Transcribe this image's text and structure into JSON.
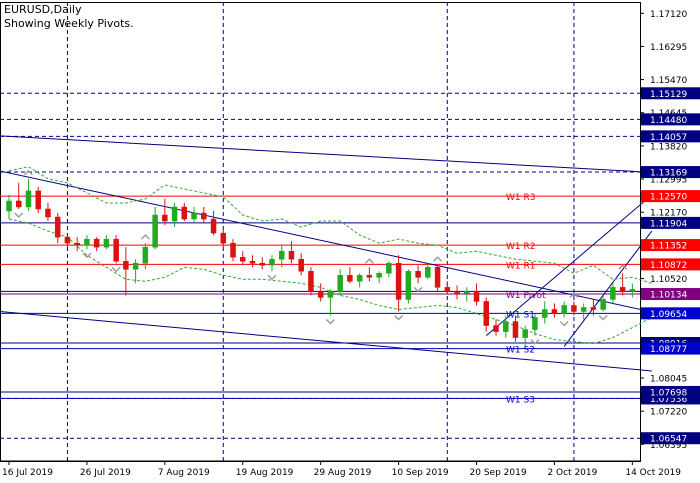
{
  "header": {
    "symbol_line": "EURUSD,Daily",
    "subtitle": "Showing Weekly Pivots."
  },
  "colors": {
    "background": "#ffffff",
    "bull": "#22aa22",
    "bear": "#dd1111",
    "resistance": "#ff0000",
    "support": "#0000cc",
    "trendline": "#000080",
    "grid_dash": "#000080",
    "envelope": "#33aa33",
    "axis_text": "#000000"
  },
  "chart_data": {
    "type": "candlestick",
    "instrument": "EURUSD",
    "timeframe": "Daily",
    "ylim": [
      1.0598,
      1.174
    ],
    "price_ticks": [
      "1.17120",
      "1.16295",
      "1.15470",
      "1.14645",
      "1.13820",
      "1.12995",
      "1.12170",
      "1.11345",
      "1.10520",
      "1.09695",
      "1.08870",
      "1.08045",
      "1.07220",
      "1.06395"
    ],
    "date_labels": [
      {
        "bar": 0,
        "text": "16 Jul 2019"
      },
      {
        "bar": 8,
        "text": "26 Jul 2019"
      },
      {
        "bar": 16,
        "text": "7 Aug 2019"
      },
      {
        "bar": 24,
        "text": "19 Aug 2019"
      },
      {
        "bar": 32,
        "text": "29 Aug 2019"
      },
      {
        "bar": 40,
        "text": "10 Sep 2019"
      },
      {
        "bar": 48,
        "text": "20 Sep 2019"
      },
      {
        "bar": 56,
        "text": "2 Oct 2019"
      },
      {
        "bar": 64,
        "text": "14 Oct 2019"
      }
    ],
    "bars_total": 66,
    "candles": [
      {
        "o": 1.122,
        "h": 1.126,
        "l": 1.12,
        "c": 1.1245
      },
      {
        "o": 1.1245,
        "h": 1.129,
        "l": 1.1225,
        "c": 1.123
      },
      {
        "o": 1.123,
        "h": 1.13,
        "l": 1.122,
        "c": 1.127
      },
      {
        "o": 1.127,
        "h": 1.128,
        "l": 1.1215,
        "c": 1.1225
      },
      {
        "o": 1.1225,
        "h": 1.124,
        "l": 1.1195,
        "c": 1.1205
      },
      {
        "o": 1.1205,
        "h": 1.1215,
        "l": 1.114,
        "c": 1.1155
      },
      {
        "o": 1.1155,
        "h": 1.116,
        "l": 1.113,
        "c": 1.114
      },
      {
        "o": 1.114,
        "h": 1.1155,
        "l": 1.112,
        "c": 1.1135
      },
      {
        "o": 1.1135,
        "h": 1.116,
        "l": 1.1125,
        "c": 1.115
      },
      {
        "o": 1.115,
        "h": 1.1155,
        "l": 1.112,
        "c": 1.113
      },
      {
        "o": 1.113,
        "h": 1.116,
        "l": 1.1125,
        "c": 1.115
      },
      {
        "o": 1.115,
        "h": 1.116,
        "l": 1.109,
        "c": 1.1095
      },
      {
        "o": 1.1095,
        "h": 1.113,
        "l": 1.101,
        "c": 1.1075
      },
      {
        "o": 1.1075,
        "h": 1.11,
        "l": 1.104,
        "c": 1.109
      },
      {
        "o": 1.109,
        "h": 1.114,
        "l": 1.1075,
        "c": 1.113
      },
      {
        "o": 1.113,
        "h": 1.123,
        "l": 1.1125,
        "c": 1.121
      },
      {
        "o": 1.121,
        "h": 1.125,
        "l": 1.1185,
        "c": 1.1195
      },
      {
        "o": 1.1195,
        "h": 1.124,
        "l": 1.118,
        "c": 1.123
      },
      {
        "o": 1.123,
        "h": 1.124,
        "l": 1.1195,
        "c": 1.12
      },
      {
        "o": 1.12,
        "h": 1.123,
        "l": 1.119,
        "c": 1.1215
      },
      {
        "o": 1.1215,
        "h": 1.123,
        "l": 1.119,
        "c": 1.12
      },
      {
        "o": 1.12,
        "h": 1.122,
        "l": 1.116,
        "c": 1.1165
      },
      {
        "o": 1.1165,
        "h": 1.1175,
        "l": 1.1125,
        "c": 1.114
      },
      {
        "o": 1.114,
        "h": 1.115,
        "l": 1.1095,
        "c": 1.1105
      },
      {
        "o": 1.1105,
        "h": 1.112,
        "l": 1.1085,
        "c": 1.1095
      },
      {
        "o": 1.1095,
        "h": 1.111,
        "l": 1.108,
        "c": 1.109
      },
      {
        "o": 1.109,
        "h": 1.1105,
        "l": 1.1075,
        "c": 1.1085
      },
      {
        "o": 1.1085,
        "h": 1.111,
        "l": 1.107,
        "c": 1.11
      },
      {
        "o": 1.11,
        "h": 1.1135,
        "l": 1.108,
        "c": 1.112
      },
      {
        "o": 1.112,
        "h": 1.1145,
        "l": 1.109,
        "c": 1.11
      },
      {
        "o": 1.11,
        "h": 1.1115,
        "l": 1.106,
        "c": 1.107
      },
      {
        "o": 1.107,
        "h": 1.108,
        "l": 1.101,
        "c": 1.102
      },
      {
        "o": 1.102,
        "h": 1.104,
        "l": 1.0995,
        "c": 1.1005
      },
      {
        "o": 1.1005,
        "h": 1.1025,
        "l": 1.096,
        "c": 1.102
      },
      {
        "o": 1.102,
        "h": 1.1075,
        "l": 1.101,
        "c": 1.106
      },
      {
        "o": 1.106,
        "h": 1.108,
        "l": 1.104,
        "c": 1.1045
      },
      {
        "o": 1.1045,
        "h": 1.1065,
        "l": 1.103,
        "c": 1.106
      },
      {
        "o": 1.106,
        "h": 1.108,
        "l": 1.1045,
        "c": 1.1055
      },
      {
        "o": 1.1055,
        "h": 1.107,
        "l": 1.104,
        "c": 1.1065
      },
      {
        "o": 1.1065,
        "h": 1.1095,
        "l": 1.1055,
        "c": 1.109
      },
      {
        "o": 1.109,
        "h": 1.111,
        "l": 1.097,
        "c": 1.1
      },
      {
        "o": 1.1,
        "h": 1.1075,
        "l": 1.099,
        "c": 1.107
      },
      {
        "o": 1.107,
        "h": 1.1085,
        "l": 1.104,
        "c": 1.1055
      },
      {
        "o": 1.1055,
        "h": 1.109,
        "l": 1.105,
        "c": 1.108
      },
      {
        "o": 1.108,
        "h": 1.1085,
        "l": 1.102,
        "c": 1.103
      },
      {
        "o": 1.103,
        "h": 1.1045,
        "l": 1.1015,
        "c": 1.102
      },
      {
        "o": 1.102,
        "h": 1.1035,
        "l": 1.1,
        "c": 1.1015
      },
      {
        "o": 1.1015,
        "h": 1.103,
        "l": 1.0995,
        "c": 1.102
      },
      {
        "o": 1.102,
        "h": 1.104,
        "l": 1.0985,
        "c": 1.0995
      },
      {
        "o": 1.0995,
        "h": 1.1005,
        "l": 1.092,
        "c": 1.0935
      },
      {
        "o": 1.0935,
        "h": 1.095,
        "l": 1.091,
        "c": 1.092
      },
      {
        "o": 1.092,
        "h": 1.096,
        "l": 1.0905,
        "c": 1.0945
      },
      {
        "o": 1.0945,
        "h": 1.096,
        "l": 1.0895,
        "c": 1.0905
      },
      {
        "o": 1.0905,
        "h": 1.0935,
        "l": 1.088,
        "c": 1.0925
      },
      {
        "o": 1.0925,
        "h": 1.0965,
        "l": 1.091,
        "c": 1.0955
      },
      {
        "o": 1.0955,
        "h": 1.0995,
        "l": 1.094,
        "c": 1.0975
      },
      {
        "o": 1.0975,
        "h": 1.099,
        "l": 1.0955,
        "c": 1.0965
      },
      {
        "o": 1.0965,
        "h": 1.0995,
        "l": 1.0955,
        "c": 1.0985
      },
      {
        "o": 1.0985,
        "h": 1.0995,
        "l": 1.096,
        "c": 1.097
      },
      {
        "o": 1.097,
        "h": 1.099,
        "l": 1.095,
        "c": 1.098
      },
      {
        "o": 1.098,
        "h": 1.1,
        "l": 1.096,
        "c": 1.0975
      },
      {
        "o": 1.0975,
        "h": 1.101,
        "l": 1.097,
        "c": 1.1
      },
      {
        "o": 1.1,
        "h": 1.104,
        "l": 1.099,
        "c": 1.103
      },
      {
        "o": 1.103,
        "h": 1.1065,
        "l": 1.101,
        "c": 1.102
      },
      {
        "o": 1.102,
        "h": 1.104,
        "l": 1.1005,
        "c": 1.1025
      }
    ],
    "pivots": [
      {
        "label": "W1 R3",
        "price": 1.1257,
        "tag": "1.12570",
        "color": "#ff0000"
      },
      {
        "label": "W1 R2",
        "price": 1.11352,
        "tag": "1.11352",
        "color": "#ff0000"
      },
      {
        "label": "W1 R1",
        "price": 1.10872,
        "tag": "1.10872",
        "color": "#ff0000"
      },
      {
        "label": "W1 Pivot",
        "price": 1.10134,
        "tag": "1.10134",
        "color": "#800080"
      },
      {
        "label": "W1 S1",
        "price": 1.09654,
        "tag": "1.09654",
        "color": "#0000cc"
      },
      {
        "label": "W1 S2",
        "price": 1.08777,
        "tag": "1.08777",
        "color": "#0000cc"
      },
      {
        "label": "W1 S3",
        "price": 1.07538,
        "tag": "",
        "color": "#0000cc"
      }
    ],
    "solid_levels": [
      {
        "price": 1.11904,
        "tag": "1.11904",
        "color": "#000080"
      },
      {
        "price": 1.102,
        "tag": "",
        "color": "#000080"
      },
      {
        "price": 1.08916,
        "tag": "1.08916",
        "color": "#000080"
      },
      {
        "price": 1.07698,
        "tag": "1.07698",
        "color": "#000080"
      }
    ],
    "dashed_levels": [
      {
        "price": 1.15129,
        "tag": "1.15129"
      },
      {
        "price": 1.1448,
        "tag": "1.14480"
      },
      {
        "price": 1.14057,
        "tag": "1.14057"
      },
      {
        "price": 1.13169,
        "tag": "1.13169"
      },
      {
        "price": 1.07536,
        "tag": "1.07536"
      },
      {
        "price": 1.06547,
        "tag": "1.06547"
      }
    ],
    "vertical_separator_bars": [
      6,
      22,
      45,
      58
    ],
    "trendlines": [
      {
        "from": {
          "bar": -1,
          "price": 1.1407
        },
        "to": {
          "bar": 66,
          "price": 1.1316
        }
      },
      {
        "from": {
          "bar": -1,
          "price": 1.132
        },
        "to": {
          "bar": 66,
          "price": 1.0969
        }
      },
      {
        "from": {
          "bar": -1,
          "price": 1.097
        },
        "to": {
          "bar": 66,
          "price": 1.0822
        }
      },
      {
        "from": {
          "bar": 49,
          "price": 1.091
        },
        "to": {
          "bar": 66,
          "price": 1.126
        }
      },
      {
        "from": {
          "bar": 57,
          "price": 1.0883
        },
        "to": {
          "bar": 66,
          "price": 1.117
        }
      }
    ],
    "envelope": {
      "upper": [
        1.132,
        1.133,
        1.13,
        1.129,
        1.1265,
        1.124,
        1.124,
        1.125,
        1.1285,
        1.1275,
        1.1265,
        1.1255,
        1.121,
        1.1195,
        1.12,
        1.118,
        1.1195,
        1.1195,
        1.116,
        1.114,
        1.115,
        1.114,
        1.1135,
        1.1115,
        1.112,
        1.111,
        1.11,
        1.1095,
        1.109,
        1.1065,
        1.1085,
        1.105,
        1.1055,
        1.104
      ],
      "lower": [
        1.12,
        1.119,
        1.117,
        1.1155,
        1.111,
        1.108,
        1.105,
        1.1045,
        1.1055,
        1.108,
        1.1075,
        1.106,
        1.105,
        1.105,
        1.1045,
        1.104,
        1.103,
        1.101,
        1.1,
        1.0985,
        1.0975,
        1.098,
        1.0985,
        1.098,
        1.0965,
        1.095,
        1.0935,
        1.0915,
        1.09,
        1.0895,
        1.089,
        1.0905,
        1.093,
        1.0955
      ]
    },
    "fractals": [
      {
        "bar": 2,
        "dir": "up"
      },
      {
        "bar": 1,
        "dir": "down"
      },
      {
        "bar": 14,
        "dir": "up"
      },
      {
        "bar": 8,
        "dir": "down"
      },
      {
        "bar": 11,
        "dir": "down"
      },
      {
        "bar": 27,
        "dir": "down"
      },
      {
        "bar": 37,
        "dir": "up"
      },
      {
        "bar": 33,
        "dir": "down"
      },
      {
        "bar": 40,
        "dir": "down"
      },
      {
        "bar": 42,
        "dir": "down"
      },
      {
        "bar": 44,
        "dir": "up"
      },
      {
        "bar": 54,
        "dir": "down"
      },
      {
        "bar": 58,
        "dir": "up"
      },
      {
        "bar": 57,
        "dir": "down"
      },
      {
        "bar": 63,
        "dir": "up"
      },
      {
        "bar": 61,
        "dir": "down"
      }
    ]
  }
}
